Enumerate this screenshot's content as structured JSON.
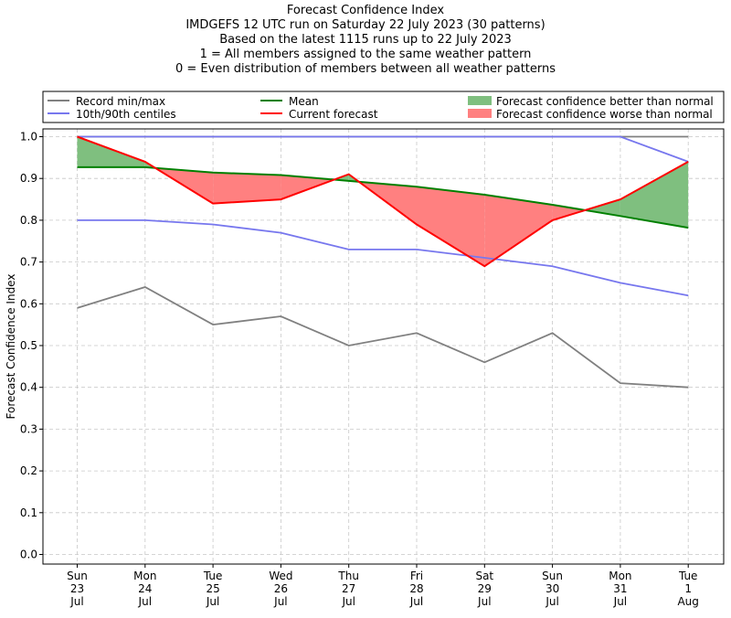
{
  "titles": [
    "Forecast Confidence Index",
    "IMDGEFS 12 UTC run on Saturday 22 July 2023 (30 patterns)",
    "Based on the latest 1115 runs up to 22 July 2023",
    "1 = All members assigned to the same weather pattern",
    "0 = Even distribution of members between all weather patterns"
  ],
  "colors": {
    "record": "#808080",
    "centiles": "#7777ee",
    "mean": "#008000",
    "current": "#ff0000",
    "better_fill": "#7fbf7f",
    "worse_fill": "#ff8080"
  },
  "chart_data": {
    "type": "line",
    "ylabel": "Forecast Confidence Index",
    "ylim": [
      0,
      1
    ],
    "yticks": [
      "0.0",
      "0.1",
      "0.2",
      "0.3",
      "0.4",
      "0.5",
      "0.6",
      "0.7",
      "0.8",
      "0.9",
      "1.0"
    ],
    "grid": true,
    "categories": [
      [
        "Sun",
        "23",
        "Jul"
      ],
      [
        "Mon",
        "24",
        "Jul"
      ],
      [
        "Tue",
        "25",
        "Jul"
      ],
      [
        "Wed",
        "26",
        "Jul"
      ],
      [
        "Thu",
        "27",
        "Jul"
      ],
      [
        "Fri",
        "28",
        "Jul"
      ],
      [
        "Sat",
        "29",
        "Jul"
      ],
      [
        "Sun",
        "30",
        "Jul"
      ],
      [
        "Mon",
        "31",
        "Jul"
      ],
      [
        "Tue",
        "1",
        "Aug"
      ]
    ],
    "legend": {
      "placement": "top",
      "entries": [
        {
          "label": "Record min/max",
          "kind": "line",
          "color": "record"
        },
        {
          "label": "10th/90th centiles",
          "kind": "line",
          "color": "centiles"
        },
        {
          "label": "Mean",
          "kind": "line",
          "color": "mean"
        },
        {
          "label": "Current forecast",
          "kind": "line",
          "color": "current"
        },
        {
          "label": "Forecast confidence better than normal",
          "kind": "patch",
          "color": "better_fill"
        },
        {
          "label": "Forecast confidence worse than normal",
          "kind": "patch",
          "color": "worse_fill"
        }
      ]
    },
    "series": [
      {
        "name": "Record max",
        "color": "record",
        "values": [
          1.0,
          1.0,
          1.0,
          1.0,
          1.0,
          1.0,
          1.0,
          1.0,
          1.0,
          1.0
        ]
      },
      {
        "name": "Record min",
        "color": "record",
        "values": [
          0.59,
          0.64,
          0.55,
          0.57,
          0.5,
          0.53,
          0.46,
          0.53,
          0.41,
          0.4
        ]
      },
      {
        "name": "90th centile",
        "color": "centiles",
        "values": [
          1.0,
          1.0,
          1.0,
          1.0,
          1.0,
          1.0,
          1.0,
          1.0,
          1.0,
          0.94
        ]
      },
      {
        "name": "10th centile",
        "color": "centiles",
        "values": [
          0.8,
          0.8,
          0.79,
          0.77,
          0.73,
          0.73,
          0.71,
          0.69,
          0.65,
          0.62
        ]
      },
      {
        "name": "Mean",
        "color": "mean",
        "values": [
          0.927,
          0.927,
          0.914,
          0.908,
          0.894,
          0.88,
          0.861,
          0.837,
          0.81,
          0.782
        ]
      },
      {
        "name": "Current forecast",
        "color": "current",
        "values": [
          1.0,
          0.94,
          0.84,
          0.85,
          0.91,
          0.79,
          0.69,
          0.8,
          0.85,
          0.94
        ]
      }
    ]
  }
}
